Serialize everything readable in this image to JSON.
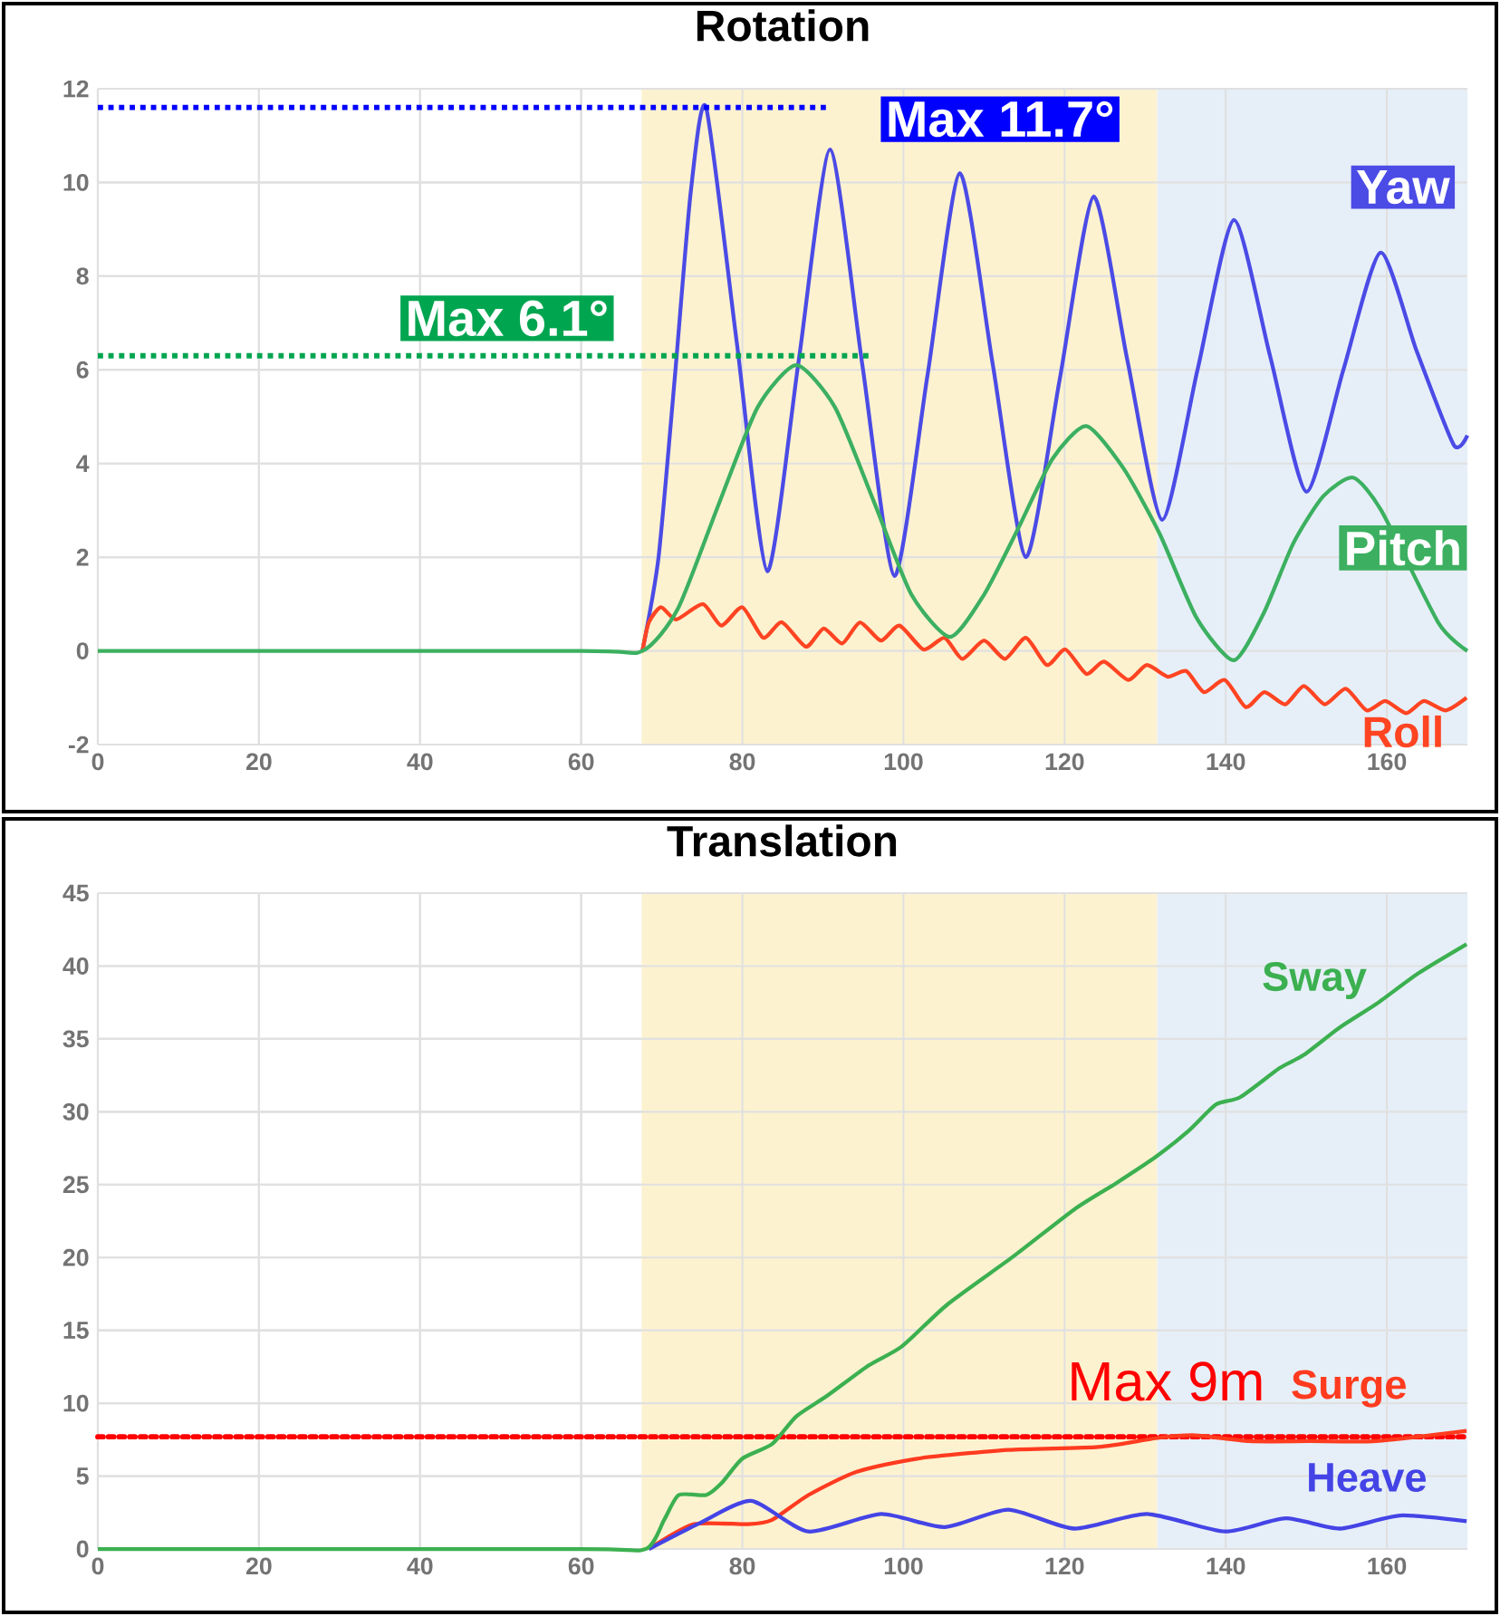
{
  "chart_data": [
    {
      "type": "line",
      "title": "Rotation",
      "xlim": [
        0,
        170
      ],
      "xticks": [
        0,
        20,
        40,
        60,
        80,
        100,
        120,
        140,
        160
      ],
      "ylim": [
        -2,
        12
      ],
      "yticks": [
        -2,
        0,
        2,
        4,
        6,
        8,
        10,
        12
      ],
      "grid": true,
      "line_style": "solid",
      "bands": [
        {
          "axis": "x",
          "from": 67.5,
          "to": 131.5,
          "color": "#fdf2d0"
        },
        {
          "axis": "x",
          "from": 131.5,
          "to": 170,
          "color": "#e6eff8"
        }
      ],
      "series": [
        {
          "name": "Yaw",
          "color": "#4b4be6",
          "x": [
            67.6,
            69.6,
            71.6,
            73.6,
            75.5,
            79.3,
            83.1,
            87,
            90.9,
            94.9,
            98.9,
            103,
            107,
            111.1,
            115.2,
            119.4,
            123.6,
            127.8,
            132.1,
            136.5,
            141,
            145.5,
            150,
            154.6,
            159.2,
            163.7,
            168.3,
            170
          ],
          "values": [
            0,
            2,
            5.8,
            9.8,
            11.6,
            6.6,
            1.7,
            6.2,
            10.7,
            6.1,
            1.6,
            5.9,
            10.2,
            6.1,
            2.0,
            5.8,
            9.7,
            6.2,
            2.8,
            6.0,
            9.2,
            6.3,
            3.4,
            6.0,
            8.5,
            6.4,
            4.4,
            4.6
          ]
        },
        {
          "name": "Roll",
          "color": "#ff4422",
          "x": [
            67.6,
            68.4,
            69.9,
            71.8,
            75.1,
            77.4,
            80.0,
            82.6,
            84.9,
            87.9,
            90.1,
            92.4,
            94.6,
            97.2,
            99.5,
            102.5,
            105.1,
            107.3,
            110.0,
            112.6,
            115.2,
            117.8,
            120.1,
            122.7,
            124.9,
            127.9,
            130.2,
            132.8,
            135.1,
            137.3,
            139.9,
            142.5,
            144.8,
            147.4,
            149.7,
            152.3,
            154.9,
            157.5,
            159.8,
            162.4,
            164.6,
            167.3,
            169.9
          ],
          "values": [
            0,
            0.61,
            0.93,
            0.67,
            1.0,
            0.54,
            0.93,
            0.28,
            0.61,
            0.09,
            0.48,
            0.16,
            0.61,
            0.22,
            0.54,
            0.03,
            0.28,
            -0.17,
            0.22,
            -0.17,
            0.28,
            -0.3,
            0.03,
            -0.49,
            -0.23,
            -0.62,
            -0.3,
            -0.55,
            -0.43,
            -0.88,
            -0.62,
            -1.2,
            -0.88,
            -1.14,
            -0.75,
            -1.14,
            -0.81,
            -1.27,
            -1.07,
            -1.33,
            -1.07,
            -1.27,
            -1.0
          ]
        },
        {
          "name": "Pitch",
          "color": "#3cb060",
          "x": [
            0,
            60,
            67.6,
            72,
            77,
            81.9,
            86.7,
            91.5,
            96.3,
            101,
            105.8,
            110,
            114.2,
            118.5,
            122.7,
            127.3,
            131.8,
            136.4,
            141,
            144.7,
            148.4,
            152.1,
            155.8,
            159.3,
            162.8,
            166.4,
            170
          ],
          "values": [
            0,
            0,
            0,
            0.9,
            3.1,
            5.2,
            6.1,
            5.2,
            3.2,
            1.2,
            0.3,
            1.2,
            2.6,
            4.1,
            4.8,
            3.9,
            2.5,
            0.7,
            -0.2,
            0.8,
            2.3,
            3.3,
            3.7,
            3.0,
            null,
            0.6,
            0
          ]
        },
        {
          "name": "Max 6.1°",
          "color": "#00a550",
          "line_style": "dotted",
          "x": [
            0,
            96
          ],
          "values": [
            6.3,
            6.3
          ]
        },
        {
          "name": "Max 11.7°",
          "color": "#0000ff",
          "line_style": "dotted",
          "x": [
            0,
            91
          ],
          "values": [
            11.6,
            11.6
          ]
        }
      ]
    },
    {
      "type": "line",
      "title": "Translation",
      "xlim": [
        0,
        170
      ],
      "xticks": [
        0,
        20,
        40,
        60,
        80,
        100,
        120,
        140,
        160
      ],
      "ylim": [
        0,
        45
      ],
      "yticks": [
        0,
        5,
        10,
        15,
        20,
        25,
        30,
        35,
        40,
        45
      ],
      "grid": true,
      "line_style": "solid",
      "bands": [
        {
          "axis": "x",
          "from": 67.5,
          "to": 131.5,
          "color": "#fdf2d0"
        },
        {
          "axis": "x",
          "from": 131.5,
          "to": 170,
          "color": "#e6eff8"
        }
      ],
      "ref_lines": [
        {
          "axis": "y",
          "value": 7.7,
          "label": "Max 9m",
          "color": "#ff0000",
          "line_style": "dotted"
        }
      ],
      "series": [
        {
          "name": "Surge",
          "color": "#ff3b1f",
          "x": [
            68.4,
            74.0,
            80.7,
            83.7,
            88.2,
            94.2,
            101.7,
            113.0,
            124.2,
            131.3,
            136.2,
            142.9,
            150.4,
            158.7,
            169.9
          ],
          "values": [
            0,
            1.7,
            1.7,
            2.0,
            3.7,
            5.3,
            6.2,
            6.8,
            7.0,
            7.6,
            7.8,
            7.4,
            7.4,
            7.4,
            8.1
          ]
        },
        {
          "name": "Heave",
          "color": "#4444e6",
          "x": [
            68.4,
            74.8,
            81.1,
            88.2,
            97.2,
            105.1,
            113.0,
            121.2,
            130.2,
            139.9,
            147.4,
            154.2,
            161.6,
            169.9
          ],
          "values": [
            0,
            1.8,
            3.3,
            1.2,
            2.4,
            1.5,
            2.7,
            1.4,
            2.4,
            1.2,
            2.1,
            1.4,
            2.3,
            1.9
          ]
        },
        {
          "name": "Sway",
          "color": "#3cb050",
          "x": [
            0,
            60,
            68.0,
            70.3,
            72.1,
            75.5,
            77.4,
            80.0,
            83.7,
            86.7,
            90.5,
            95.7,
            99.8,
            105.5,
            113.7,
            121.2,
            126.4,
            131.3,
            135.4,
            138.8,
            141.8,
            146.7,
            149.7,
            154.2,
            158.7,
            163.9,
            169.9
          ],
          "values": [
            0,
            0,
            0,
            2.0,
            3.7,
            3.7,
            4.5,
            6.2,
            7.2,
            9.1,
            10.5,
            12.6,
            13.9,
            16.8,
            20.1,
            23.3,
            25.1,
            26.9,
            28.7,
            30.5,
            31.0,
            33.0,
            33.9,
            35.8,
            37.4,
            39.5,
            41.5
          ]
        }
      ]
    }
  ]
}
